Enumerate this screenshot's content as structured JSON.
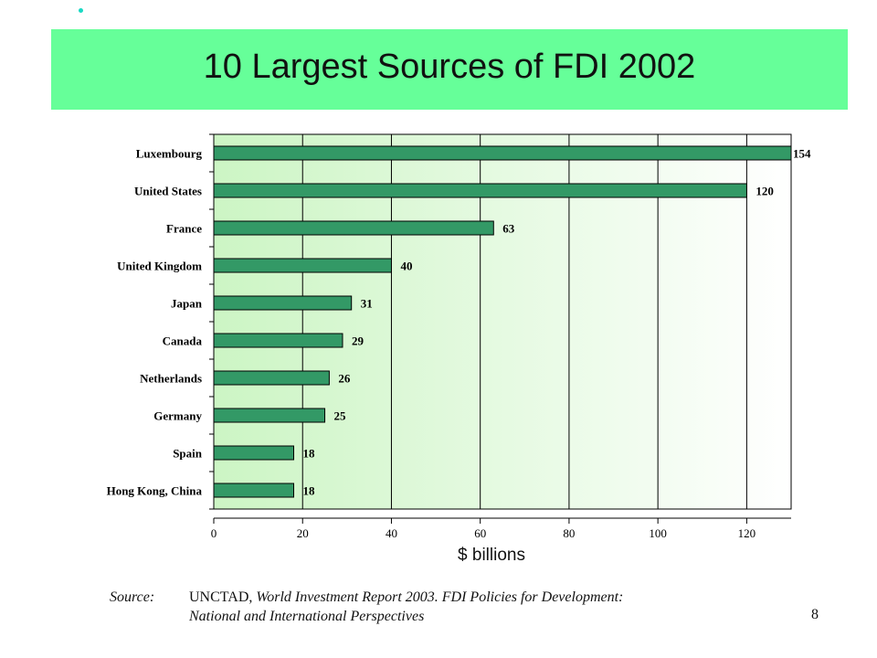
{
  "slide": {
    "title": "10 Largest Sources of FDI 2002",
    "page_number": "8",
    "bullet_color": "#19d9c4",
    "title_band_color": "#66ff99"
  },
  "source": {
    "label": "Source:",
    "publisher": "UNCTAD, ",
    "report": "World Investment Report 2003.  FDI Policies for Development:",
    "line2": "National and International Perspectives"
  },
  "chart_data": {
    "type": "bar",
    "orientation": "horizontal",
    "title": "10 Largest Sources of FDI 2002",
    "xlabel": "$ billions",
    "ylabel": "",
    "categories": [
      "Luxembourg",
      "United States",
      "France",
      "United Kingdom",
      "Japan",
      "Canada",
      "Netherlands",
      "Germany",
      "Spain",
      "Hong Kong, China"
    ],
    "values": [
      154,
      120,
      63,
      40,
      31,
      29,
      26,
      25,
      18,
      18
    ],
    "data_labels": [
      "154",
      "120",
      "63",
      "40",
      "31",
      "29",
      "26",
      "25",
      "18",
      "18"
    ],
    "xlim": [
      0,
      130
    ],
    "xticks": [
      0,
      20,
      40,
      60,
      80,
      100,
      120
    ],
    "grid": true,
    "bar_color": "#339966",
    "plot_background": "gradient light-green to white"
  }
}
